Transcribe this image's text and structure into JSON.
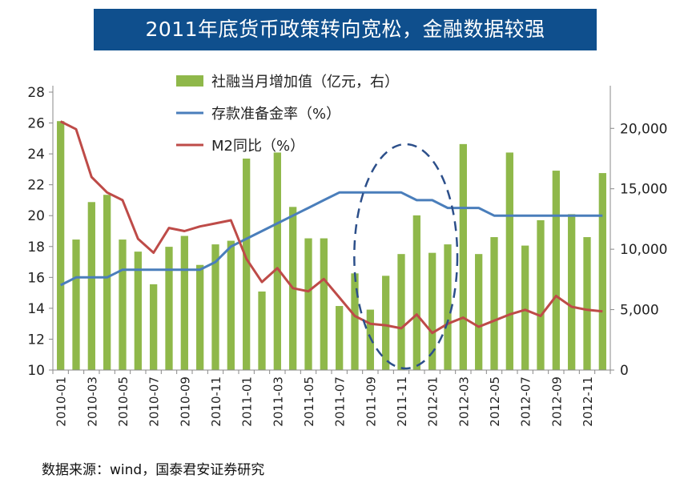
{
  "title": "2011年底货币政策转向宽松，金融数据较强",
  "source": "数据来源：wind，国泰君安证券研究",
  "colors": {
    "banner": "#0f4f8d",
    "bars": "#8fb84a",
    "rrr": "#4a7ebb",
    "m2": "#be4b48",
    "ellipse": "#2c4f8a"
  },
  "chart_data": {
    "type": "bar+line",
    "categories": [
      "2010-01",
      "2010-02",
      "2010-03",
      "2010-04",
      "2010-05",
      "2010-06",
      "2010-07",
      "2010-08",
      "2010-09",
      "2010-10",
      "2010-11",
      "2010-12",
      "2011-01",
      "2011-02",
      "2011-03",
      "2011-04",
      "2011-05",
      "2011-06",
      "2011-07",
      "2011-08",
      "2011-09",
      "2011-10",
      "2011-11",
      "2011-12",
      "2012-01",
      "2012-02",
      "2012-03",
      "2012-04",
      "2012-05",
      "2012-06",
      "2012-07",
      "2012-08",
      "2012-09",
      "2012-10",
      "2012-11",
      "2012-12"
    ],
    "xtick_labels": [
      "2010-01",
      "2010-03",
      "2010-05",
      "2010-07",
      "2010-09",
      "2010-11",
      "2011-01",
      "2011-03",
      "2011-05",
      "2011-07",
      "2011-09",
      "2011-11",
      "2012-01",
      "2012-03",
      "2012-05",
      "2012-07",
      "2012-09",
      "2012-11"
    ],
    "left_axis": {
      "ticks": [
        10,
        12,
        14,
        16,
        18,
        20,
        22,
        24,
        26,
        28
      ],
      "ylim": [
        10,
        28
      ]
    },
    "right_axis": {
      "ticks": [
        0,
        5000,
        10000,
        15000,
        20000
      ],
      "tick_labels": [
        "0",
        "5,000",
        "10,000",
        "15,000",
        "20,000"
      ],
      "ylim": [
        0,
        23000
      ]
    },
    "series": [
      {
        "name": "社融当月增加值（亿元，右）",
        "type": "bar",
        "axis": "right",
        "values": [
          20600,
          10800,
          13900,
          14500,
          10800,
          9800,
          7100,
          10200,
          11100,
          8700,
          10400,
          10700,
          17500,
          6500,
          18000,
          13500,
          10900,
          10900,
          5300,
          8000,
          5000,
          7800,
          9600,
          12800,
          9700,
          10400,
          18700,
          9600,
          11000,
          18000,
          10300,
          12400,
          16500,
          12900,
          11000,
          16300
        ]
      },
      {
        "name": "存款准备金率（%）",
        "type": "line",
        "axis": "left",
        "values": [
          15.5,
          16.0,
          16.0,
          16.0,
          16.5,
          16.5,
          16.5,
          16.5,
          16.5,
          16.5,
          17.0,
          18.0,
          18.5,
          19.0,
          19.5,
          20.0,
          20.5,
          21.0,
          21.5,
          21.5,
          21.5,
          21.5,
          21.5,
          21.0,
          21.0,
          20.5,
          20.5,
          20.5,
          20.0,
          20.0,
          20.0,
          20.0,
          20.0,
          20.0,
          20.0,
          20.0
        ]
      },
      {
        "name": "M2同比（%）",
        "type": "line",
        "axis": "left",
        "values": [
          26.1,
          25.6,
          22.5,
          21.5,
          21.0,
          18.5,
          17.6,
          19.2,
          19.0,
          19.3,
          19.5,
          19.7,
          17.2,
          15.7,
          16.6,
          15.3,
          15.1,
          15.9,
          14.7,
          13.5,
          13.0,
          12.9,
          12.7,
          13.6,
          12.4,
          13.0,
          13.4,
          12.8,
          13.2,
          13.6,
          13.9,
          13.5,
          14.8,
          14.1,
          13.9,
          13.8
        ]
      }
    ],
    "legend": [
      "社融当月增加值（亿元，右）",
      "存款准备金率（%）",
      "M2同比（%）"
    ],
    "annotation": "dashed ellipse highlighting 2011-09 to 2012-02"
  }
}
